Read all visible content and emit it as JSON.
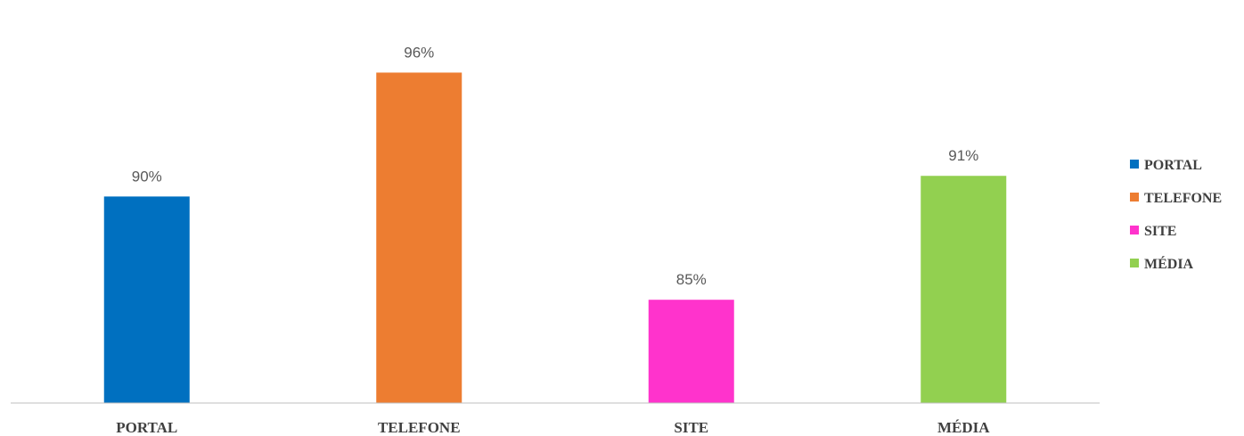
{
  "chart_data": {
    "type": "bar",
    "categories": [
      "PORTAL",
      "TELEFONE",
      "SITE",
      "MÉDIA"
    ],
    "values": [
      90,
      96,
      85,
      91
    ],
    "data_labels": [
      "90%",
      "96%",
      "85%",
      "91%"
    ],
    "colors": [
      "#0070C0",
      "#ED7D31",
      "#FF33CC",
      "#92D050"
    ],
    "title": "",
    "xlabel": "",
    "ylabel": "",
    "value_unit": "%",
    "ylim": [
      80,
      97.4
    ],
    "grid": false,
    "axis_line_color": "#BFBFBF",
    "legend": {
      "position": "right",
      "entries": [
        "PORTAL",
        "TELEFONE",
        "SITE",
        "MÉDIA"
      ]
    }
  }
}
